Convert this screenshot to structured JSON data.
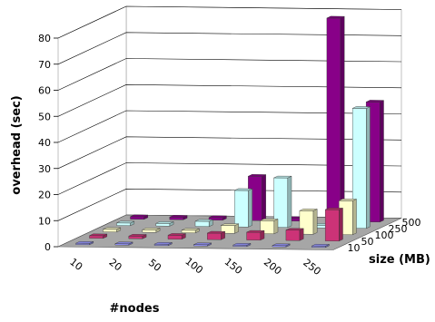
{
  "chart_data": {
    "type": "bar3d",
    "title": "",
    "xlabel": "#nodes",
    "ylabel": "overhead (sec)",
    "zlabel": "size (MB)",
    "x_categories": [
      "10",
      "20",
      "50",
      "100",
      "150",
      "200",
      "250"
    ],
    "z_categories": [
      "10",
      "50",
      "100",
      "250",
      "500"
    ],
    "ylim": [
      0,
      80
    ],
    "y_ticks": [
      "0",
      "10",
      "20",
      "30",
      "40",
      "50",
      "60",
      "70",
      "80"
    ],
    "grid": true,
    "legend": "none",
    "series": [
      {
        "size": "10",
        "color": "#9999ff",
        "values": [
          0.5,
          0.5,
          0.5,
          0.5,
          0.5,
          0.5,
          0.5
        ]
      },
      {
        "size": "50",
        "color": "#cc3377",
        "values": [
          1,
          1,
          1.5,
          2.5,
          3,
          4,
          12
        ]
      },
      {
        "size": "100",
        "color": "#ffffcc",
        "values": [
          1,
          1,
          1,
          3,
          5,
          9,
          13
        ]
      },
      {
        "size": "250",
        "color": "#ccffff",
        "values": [
          1,
          1,
          2,
          14,
          19,
          1,
          46
        ]
      },
      {
        "size": "500",
        "color": "#880088",
        "values": [
          1,
          1,
          1,
          17,
          1,
          78,
          46
        ]
      }
    ],
    "colors": {
      "floor": "#a6a6a6",
      "walls": "#ffffff",
      "gridline": "#000000"
    }
  }
}
